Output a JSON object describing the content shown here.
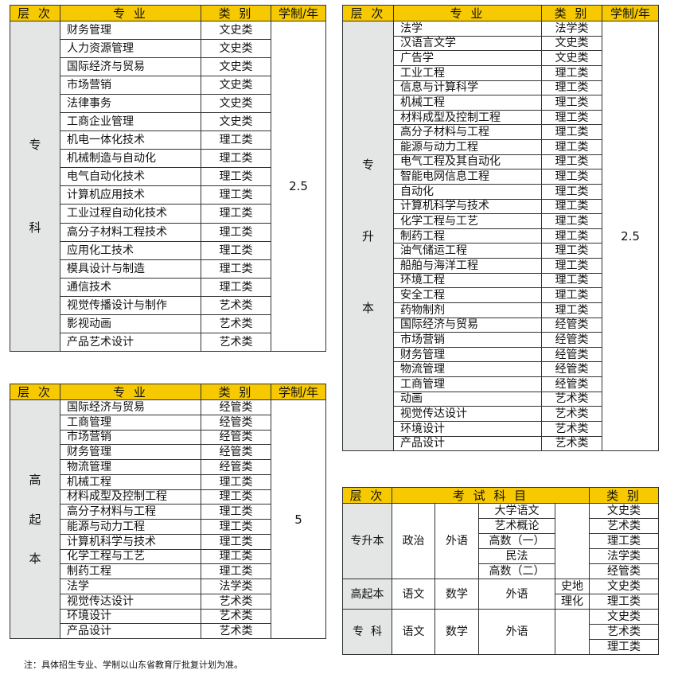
{
  "headers": {
    "level": "层 次",
    "major": "专 业",
    "category": "类 别",
    "years": "学制/年"
  },
  "zhuanke": {
    "level": "专 科",
    "years": "2.5",
    "rows": [
      [
        "财务管理",
        "文史类"
      ],
      [
        "人力资源管理",
        "文史类"
      ],
      [
        "国际经济与贸易",
        "文史类"
      ],
      [
        "市场营销",
        "文史类"
      ],
      [
        "法律事务",
        "文史类"
      ],
      [
        "工商企业管理",
        "文史类"
      ],
      [
        "机电一体化技术",
        "理工类"
      ],
      [
        "机械制造与自动化",
        "理工类"
      ],
      [
        "电气自动化技术",
        "理工类"
      ],
      [
        "计算机应用技术",
        "理工类"
      ],
      [
        "工业过程自动化技术",
        "理工类"
      ],
      [
        "高分子材料工程技术",
        "理工类"
      ],
      [
        "应用化工技术",
        "理工类"
      ],
      [
        "模具设计与制造",
        "理工类"
      ],
      [
        "通信技术",
        "理工类"
      ],
      [
        "视觉传播设计与制作",
        "艺术类"
      ],
      [
        "影视动画",
        "艺术类"
      ],
      [
        "产品艺术设计",
        "艺术类"
      ]
    ]
  },
  "gaoqiben": {
    "level": "高 起 本",
    "years": "5",
    "rows": [
      [
        "国际经济与贸易",
        "经管类"
      ],
      [
        "工商管理",
        "经管类"
      ],
      [
        "市场营销",
        "经管类"
      ],
      [
        "财务管理",
        "经管类"
      ],
      [
        "物流管理",
        "经管类"
      ],
      [
        "机械工程",
        "理工类"
      ],
      [
        "材料成型及控制工程",
        "理工类"
      ],
      [
        "高分子材料与工程",
        "理工类"
      ],
      [
        "能源与动力工程",
        "理工类"
      ],
      [
        "计算机科学与技术",
        "理工类"
      ],
      [
        "化学工程与工艺",
        "理工类"
      ],
      [
        "制药工程",
        "理工类"
      ],
      [
        "法学",
        "法学类"
      ],
      [
        "视觉传达设计",
        "艺术类"
      ],
      [
        "环境设计",
        "艺术类"
      ],
      [
        "产品设计",
        "艺术类"
      ]
    ]
  },
  "zhuanshengben": {
    "level": "专 升 本",
    "years": "2.5",
    "rows": [
      [
        "法学",
        "法学类"
      ],
      [
        "汉语言文学",
        "文史类"
      ],
      [
        "广告学",
        "文史类"
      ],
      [
        "工业工程",
        "理工类"
      ],
      [
        "信息与计算科学",
        "理工类"
      ],
      [
        "机械工程",
        "理工类"
      ],
      [
        "材料成型及控制工程",
        "理工类"
      ],
      [
        "高分子材料与工程",
        "理工类"
      ],
      [
        "能源与动力工程",
        "理工类"
      ],
      [
        "电气工程及其自动化",
        "理工类"
      ],
      [
        "智能电网信息工程",
        "理工类"
      ],
      [
        "自动化",
        "理工类"
      ],
      [
        "计算机科学与技术",
        "理工类"
      ],
      [
        "化学工程与工艺",
        "理工类"
      ],
      [
        "制药工程",
        "理工类"
      ],
      [
        "油气储运工程",
        "理工类"
      ],
      [
        "船舶与海洋工程",
        "理工类"
      ],
      [
        "环境工程",
        "理工类"
      ],
      [
        "安全工程",
        "理工类"
      ],
      [
        "药物制剂",
        "理工类"
      ],
      [
        "国际经济与贸易",
        "经管类"
      ],
      [
        "市场营销",
        "经管类"
      ],
      [
        "财务管理",
        "经管类"
      ],
      [
        "物流管理",
        "经管类"
      ],
      [
        "工商管理",
        "经管类"
      ],
      [
        "动画",
        "艺术类"
      ],
      [
        "视觉传达设计",
        "艺术类"
      ],
      [
        "环境设计",
        "艺术类"
      ],
      [
        "产品设计",
        "艺术类"
      ]
    ]
  },
  "exam": {
    "header_level": "层 次",
    "header_subjects": "考 试 科 目",
    "header_category": "类 别",
    "zsb": {
      "level": "专升本",
      "s1": "政治",
      "s2": "外语",
      "s3": [
        "大学语文",
        "艺术概论",
        "高数（一）",
        "民法",
        "高数（二）"
      ],
      "cats": [
        "文史类",
        "艺术类",
        "理工类",
        "法学类",
        "经管类"
      ]
    },
    "gqb": {
      "level": "高起本",
      "s1": "语文",
      "s2": "数学",
      "s3": "外语",
      "s4": [
        "史地",
        "理化"
      ],
      "cats": [
        "文史类",
        "理工类"
      ]
    },
    "zk": {
      "level": "专  科",
      "s1": "语文",
      "s2": "数学",
      "s3": "外语",
      "cats": [
        "文史类",
        "艺术类",
        "理工类"
      ]
    }
  },
  "note": "注：具体招生专业、学制以山东省教育厅批复计划为准。"
}
